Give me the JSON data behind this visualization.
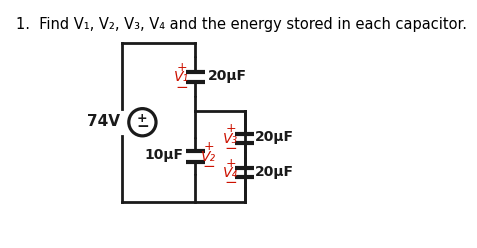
{
  "title": "1.  Find V₁, V₂, V₃, V₄ and the energy stored in each capacitor.",
  "title_fontsize": 10.5,
  "bg_color": "#ffffff",
  "wire_color": "#1a1a1a",
  "red_color": "#cc1100",
  "source_label": "74V",
  "cap1_label": "20μF",
  "cap2_label": "10μF",
  "cap3_label": "20μF",
  "cap4_label": "20μF",
  "v1_label": "V₁",
  "v2_label": "V₂",
  "v3_label": "V₃",
  "v4_label": "V₄"
}
